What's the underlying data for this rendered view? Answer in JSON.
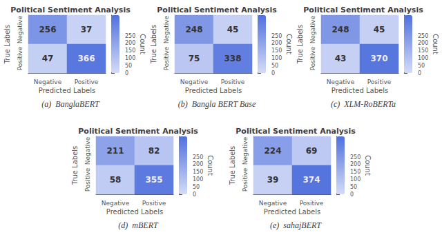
{
  "chart_data": [
    {
      "type": "heatmap",
      "title": "Political Sentiment Analysis",
      "caption": "(a)  BanglaBERT",
      "x": [
        "Negative",
        "Positive"
      ],
      "y": [
        "Negative",
        "Positive"
      ],
      "xlabel": "Predicted Labels",
      "ylabel": "True Labels",
      "values": [
        [
          256,
          37
        ],
        [
          47,
          366
        ]
      ],
      "data_labels": true,
      "colorbar": {
        "label": "Count",
        "range": [
          0,
          390
        ],
        "ticks": [
          0,
          50,
          100,
          150,
          200,
          250
        ]
      }
    },
    {
      "type": "heatmap",
      "title": "Political Sentiment Analysis",
      "caption": "(b)  Bangla BERT Base",
      "x": [
        "Negative",
        "Positive"
      ],
      "y": [
        "Negative",
        "Positive"
      ],
      "xlabel": "Predicted Labels",
      "ylabel": "True Labels",
      "values": [
        [
          248,
          45
        ],
        [
          75,
          338
        ]
      ],
      "data_labels": true,
      "colorbar": {
        "label": "Count",
        "range": [
          0,
          390
        ],
        "ticks": [
          0,
          50,
          100,
          150,
          200,
          250
        ]
      }
    },
    {
      "type": "heatmap",
      "title": "Political Sentiment Analysis",
      "caption": "(c)  XLM-RoBERTa",
      "x": [
        "Negative",
        "Positive"
      ],
      "y": [
        "Negative",
        "Positive"
      ],
      "xlabel": "Predicted Labels",
      "ylabel": "True Labels",
      "values": [
        [
          248,
          45
        ],
        [
          43,
          370
        ]
      ],
      "data_labels": true,
      "colorbar": {
        "label": "Count",
        "range": [
          0,
          390
        ],
        "ticks": [
          0,
          50,
          100,
          150,
          200,
          250
        ]
      }
    },
    {
      "type": "heatmap",
      "title": "Political Sentiment Analysis",
      "caption": "(d)  mBERT",
      "x": [
        "Negative",
        "Positive"
      ],
      "y": [
        "Negative",
        "Positive"
      ],
      "xlabel": "Predicted Labels",
      "ylabel": "True Labels",
      "values": [
        [
          211,
          82
        ],
        [
          58,
          355
        ]
      ],
      "data_labels": true,
      "colorbar": {
        "label": "Count",
        "range": [
          0,
          390
        ],
        "ticks": [
          0,
          50,
          100,
          150,
          200,
          250
        ]
      }
    },
    {
      "type": "heatmap",
      "title": "Political Sentiment Analysis",
      "caption": "(e)  sahajBERT",
      "x": [
        "Negative",
        "Positive"
      ],
      "y": [
        "Negative",
        "Positive"
      ],
      "xlabel": "Predicted Labels",
      "ylabel": "True Labels",
      "values": [
        [
          224,
          69
        ],
        [
          39,
          374
        ]
      ],
      "data_labels": true,
      "colorbar": {
        "label": "Count",
        "range": [
          0,
          390
        ],
        "ticks": [
          0,
          50,
          100,
          150,
          200,
          250
        ]
      }
    }
  ]
}
